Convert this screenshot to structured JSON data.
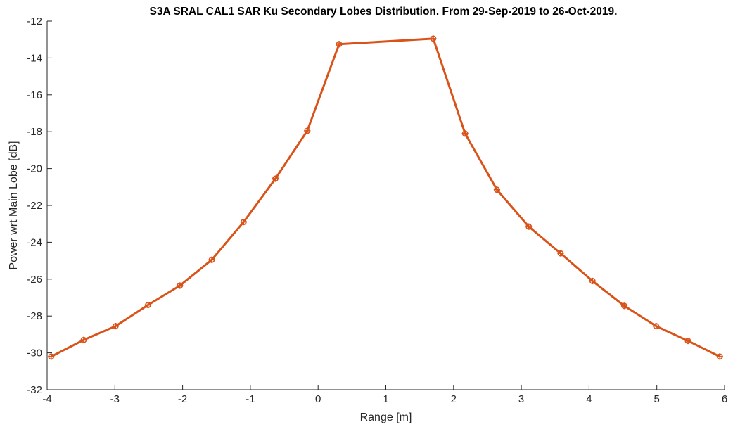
{
  "chart_data": {
    "type": "line",
    "title": "S3A SRAL CAL1 SAR Ku Secondary Lobes Distribution. From 29-Sep-2019 to 26-Oct-2019.",
    "xlabel": "Range [m]",
    "ylabel": "Power wrt Main Lobe [dB]",
    "xlim": [
      -4,
      6
    ],
    "ylim": [
      -32,
      -12
    ],
    "xticks": [
      -4,
      -3,
      -2,
      -1,
      0,
      1,
      2,
      3,
      4,
      5,
      6
    ],
    "yticks": [
      -12,
      -14,
      -16,
      -18,
      -20,
      -22,
      -24,
      -26,
      -28,
      -30,
      -32
    ],
    "grid": false,
    "legend": "none",
    "series": [
      {
        "color": "#D95319",
        "marker": "cross-circle",
        "x": [
          -3.94,
          -3.46,
          -2.99,
          -2.51,
          -2.04,
          -1.57,
          -1.1,
          -0.63,
          -0.16,
          0.31,
          1.7,
          2.17,
          2.64,
          3.11,
          3.58,
          4.05,
          4.52,
          4.99,
          5.46,
          5.93
        ],
        "y": [
          -30.2,
          -29.3,
          -28.55,
          -27.4,
          -26.35,
          -24.95,
          -22.9,
          -20.55,
          -17.95,
          -13.25,
          -12.95,
          -18.1,
          -21.15,
          -23.15,
          -24.6,
          -26.1,
          -27.45,
          -28.55,
          -29.35,
          -30.2
        ]
      }
    ]
  }
}
